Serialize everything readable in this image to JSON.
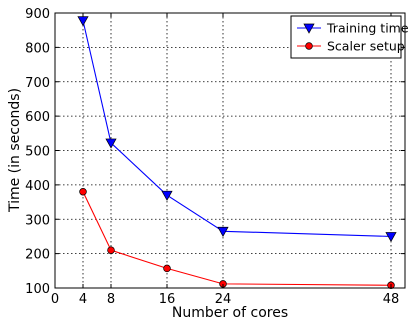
{
  "chart_data": {
    "type": "line",
    "xlabel": "Number of cores",
    "ylabel": "Time (in seconds)",
    "xlim": [
      0,
      50
    ],
    "ylim": [
      100,
      900
    ],
    "xticks": [
      0,
      4,
      8,
      16,
      24,
      48
    ],
    "yticks": [
      100,
      200,
      300,
      400,
      500,
      600,
      700,
      800,
      900
    ],
    "grid": true,
    "legend_position": "top-right",
    "series": [
      {
        "name": "Training time",
        "color": "#0000ff",
        "marker": "triangle-down",
        "x": [
          4,
          8,
          16,
          24,
          48
        ],
        "y": [
          878,
          522,
          370,
          265,
          250
        ]
      },
      {
        "name": "Scaler setup",
        "color": "#ff0000",
        "marker": "circle",
        "x": [
          4,
          8,
          16,
          24,
          48
        ],
        "y": [
          380,
          210,
          157,
          112,
          108
        ]
      }
    ]
  }
}
